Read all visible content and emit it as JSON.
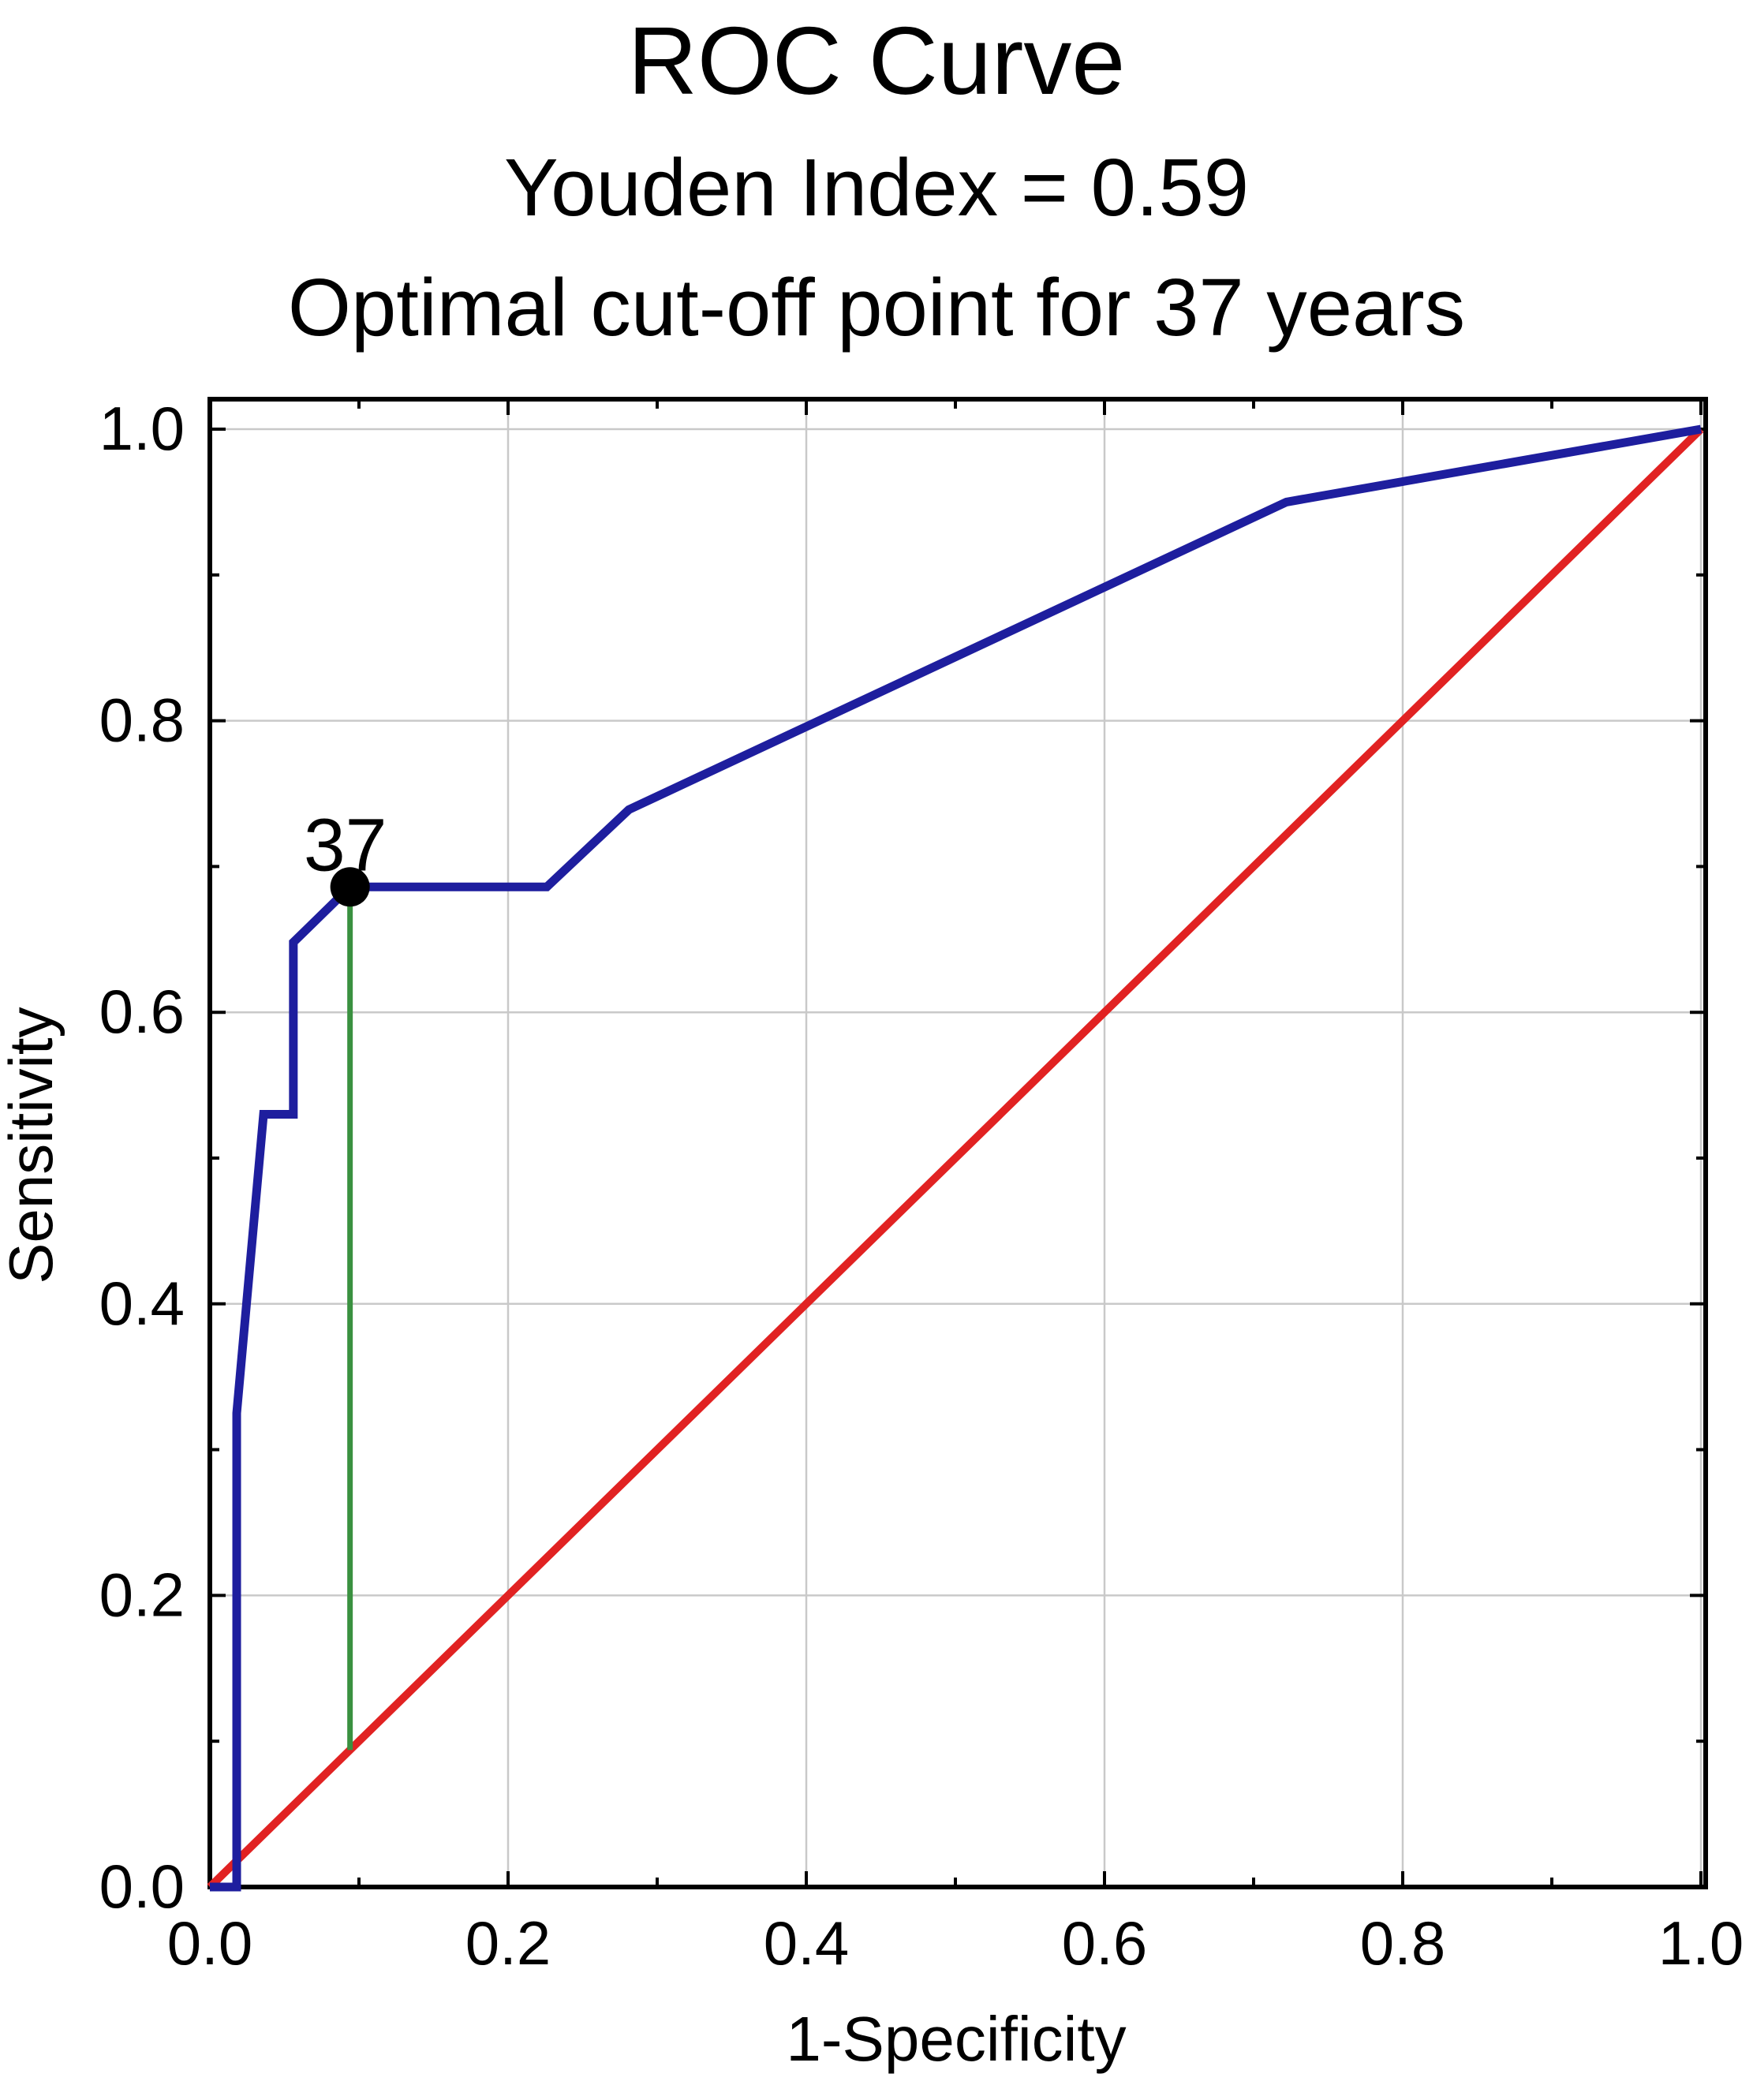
{
  "header": {
    "title": "ROC Curve",
    "subtitle": "Youden Index = 0.59",
    "annotation": "Optimal cut-off point for 37 years"
  },
  "chart_data": {
    "type": "line",
    "title": "ROC Curve",
    "subtitle": "Youden Index = 0.59",
    "annotation": "Optimal cut-off point for 37 years",
    "xlabel": "1-Specificity",
    "ylabel": "Sensitivity",
    "xlim": [
      0.0,
      1.0
    ],
    "ylim": [
      0.0,
      1.0
    ],
    "x_ticks_major": [
      0.0,
      0.2,
      0.4,
      0.6,
      0.8,
      1.0
    ],
    "y_ticks_major": [
      0.0,
      0.2,
      0.4,
      0.6,
      0.8,
      1.0
    ],
    "x_ticks_minor": [
      0.1,
      0.3,
      0.5,
      0.7,
      0.9
    ],
    "y_ticks_minor": [
      0.1,
      0.3,
      0.5,
      0.7,
      0.9
    ],
    "tick_decimals": 1,
    "grid": true,
    "legend_position": "none",
    "youden_index": 0.59,
    "optimal_cutoff_years": 37,
    "series": [
      {
        "name": "chance-diagonal",
        "color": "#e12222",
        "stroke_width": 10,
        "points": [
          [
            0.0,
            0.0
          ],
          [
            1.0,
            1.0
          ]
        ]
      },
      {
        "name": "youden-index-line",
        "color": "#3a9140",
        "stroke_width": 7,
        "points": [
          [
            0.094,
            0.094
          ],
          [
            0.094,
            0.686
          ]
        ]
      },
      {
        "name": "roc-curve",
        "color": "#1e1e9e",
        "stroke_width": 11,
        "points": [
          [
            0.0,
            0.0
          ],
          [
            0.018,
            0.0
          ],
          [
            0.018,
            0.325
          ],
          [
            0.036,
            0.53
          ],
          [
            0.056,
            0.53
          ],
          [
            0.056,
            0.648
          ],
          [
            0.094,
            0.686
          ],
          [
            0.226,
            0.686
          ],
          [
            0.281,
            0.739
          ],
          [
            0.722,
            0.95
          ],
          [
            1.0,
            1.0
          ]
        ]
      }
    ],
    "cutoff_point": {
      "x": 0.094,
      "y": 0.686,
      "label": "37",
      "color": "#000000",
      "radius": 25
    }
  },
  "colors": {
    "background": "#ffffff",
    "grid": "#c9c9c9",
    "axis": "#000000",
    "text": "#000000",
    "roc": "#1e1e9e",
    "diagonal": "#e12222",
    "youden_line": "#3a9140",
    "cutoff_dot": "#000000"
  }
}
